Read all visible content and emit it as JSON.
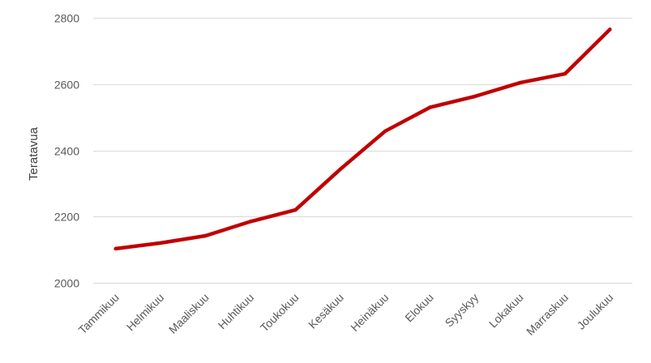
{
  "chart_data": {
    "type": "line",
    "title": "",
    "xlabel": "",
    "ylabel": "Teratavua",
    "categories": [
      "Tammikuu",
      "Helmikuu",
      "Maaliskuu",
      "Huhtikuu",
      "Toukokuu",
      "Kesäkuu",
      "Heinäkuu",
      "Elokuu",
      "Syyskyy",
      "Lokakuu",
      "Marraskuu",
      "Joulukuu"
    ],
    "series": [
      {
        "values": [
          2103,
          2120,
          2142,
          2185,
          2220,
          2343,
          2458,
          2530,
          2563,
          2604,
          2631,
          2765
        ]
      }
    ],
    "ylim": [
      2000,
      2800
    ],
    "yticks": [
      2000,
      2200,
      2400,
      2600,
      2800
    ],
    "grid": true,
    "legend": "none",
    "colors": {
      "line": "#C00000",
      "grid": "#D9D9D9",
      "text": "#595959"
    }
  }
}
